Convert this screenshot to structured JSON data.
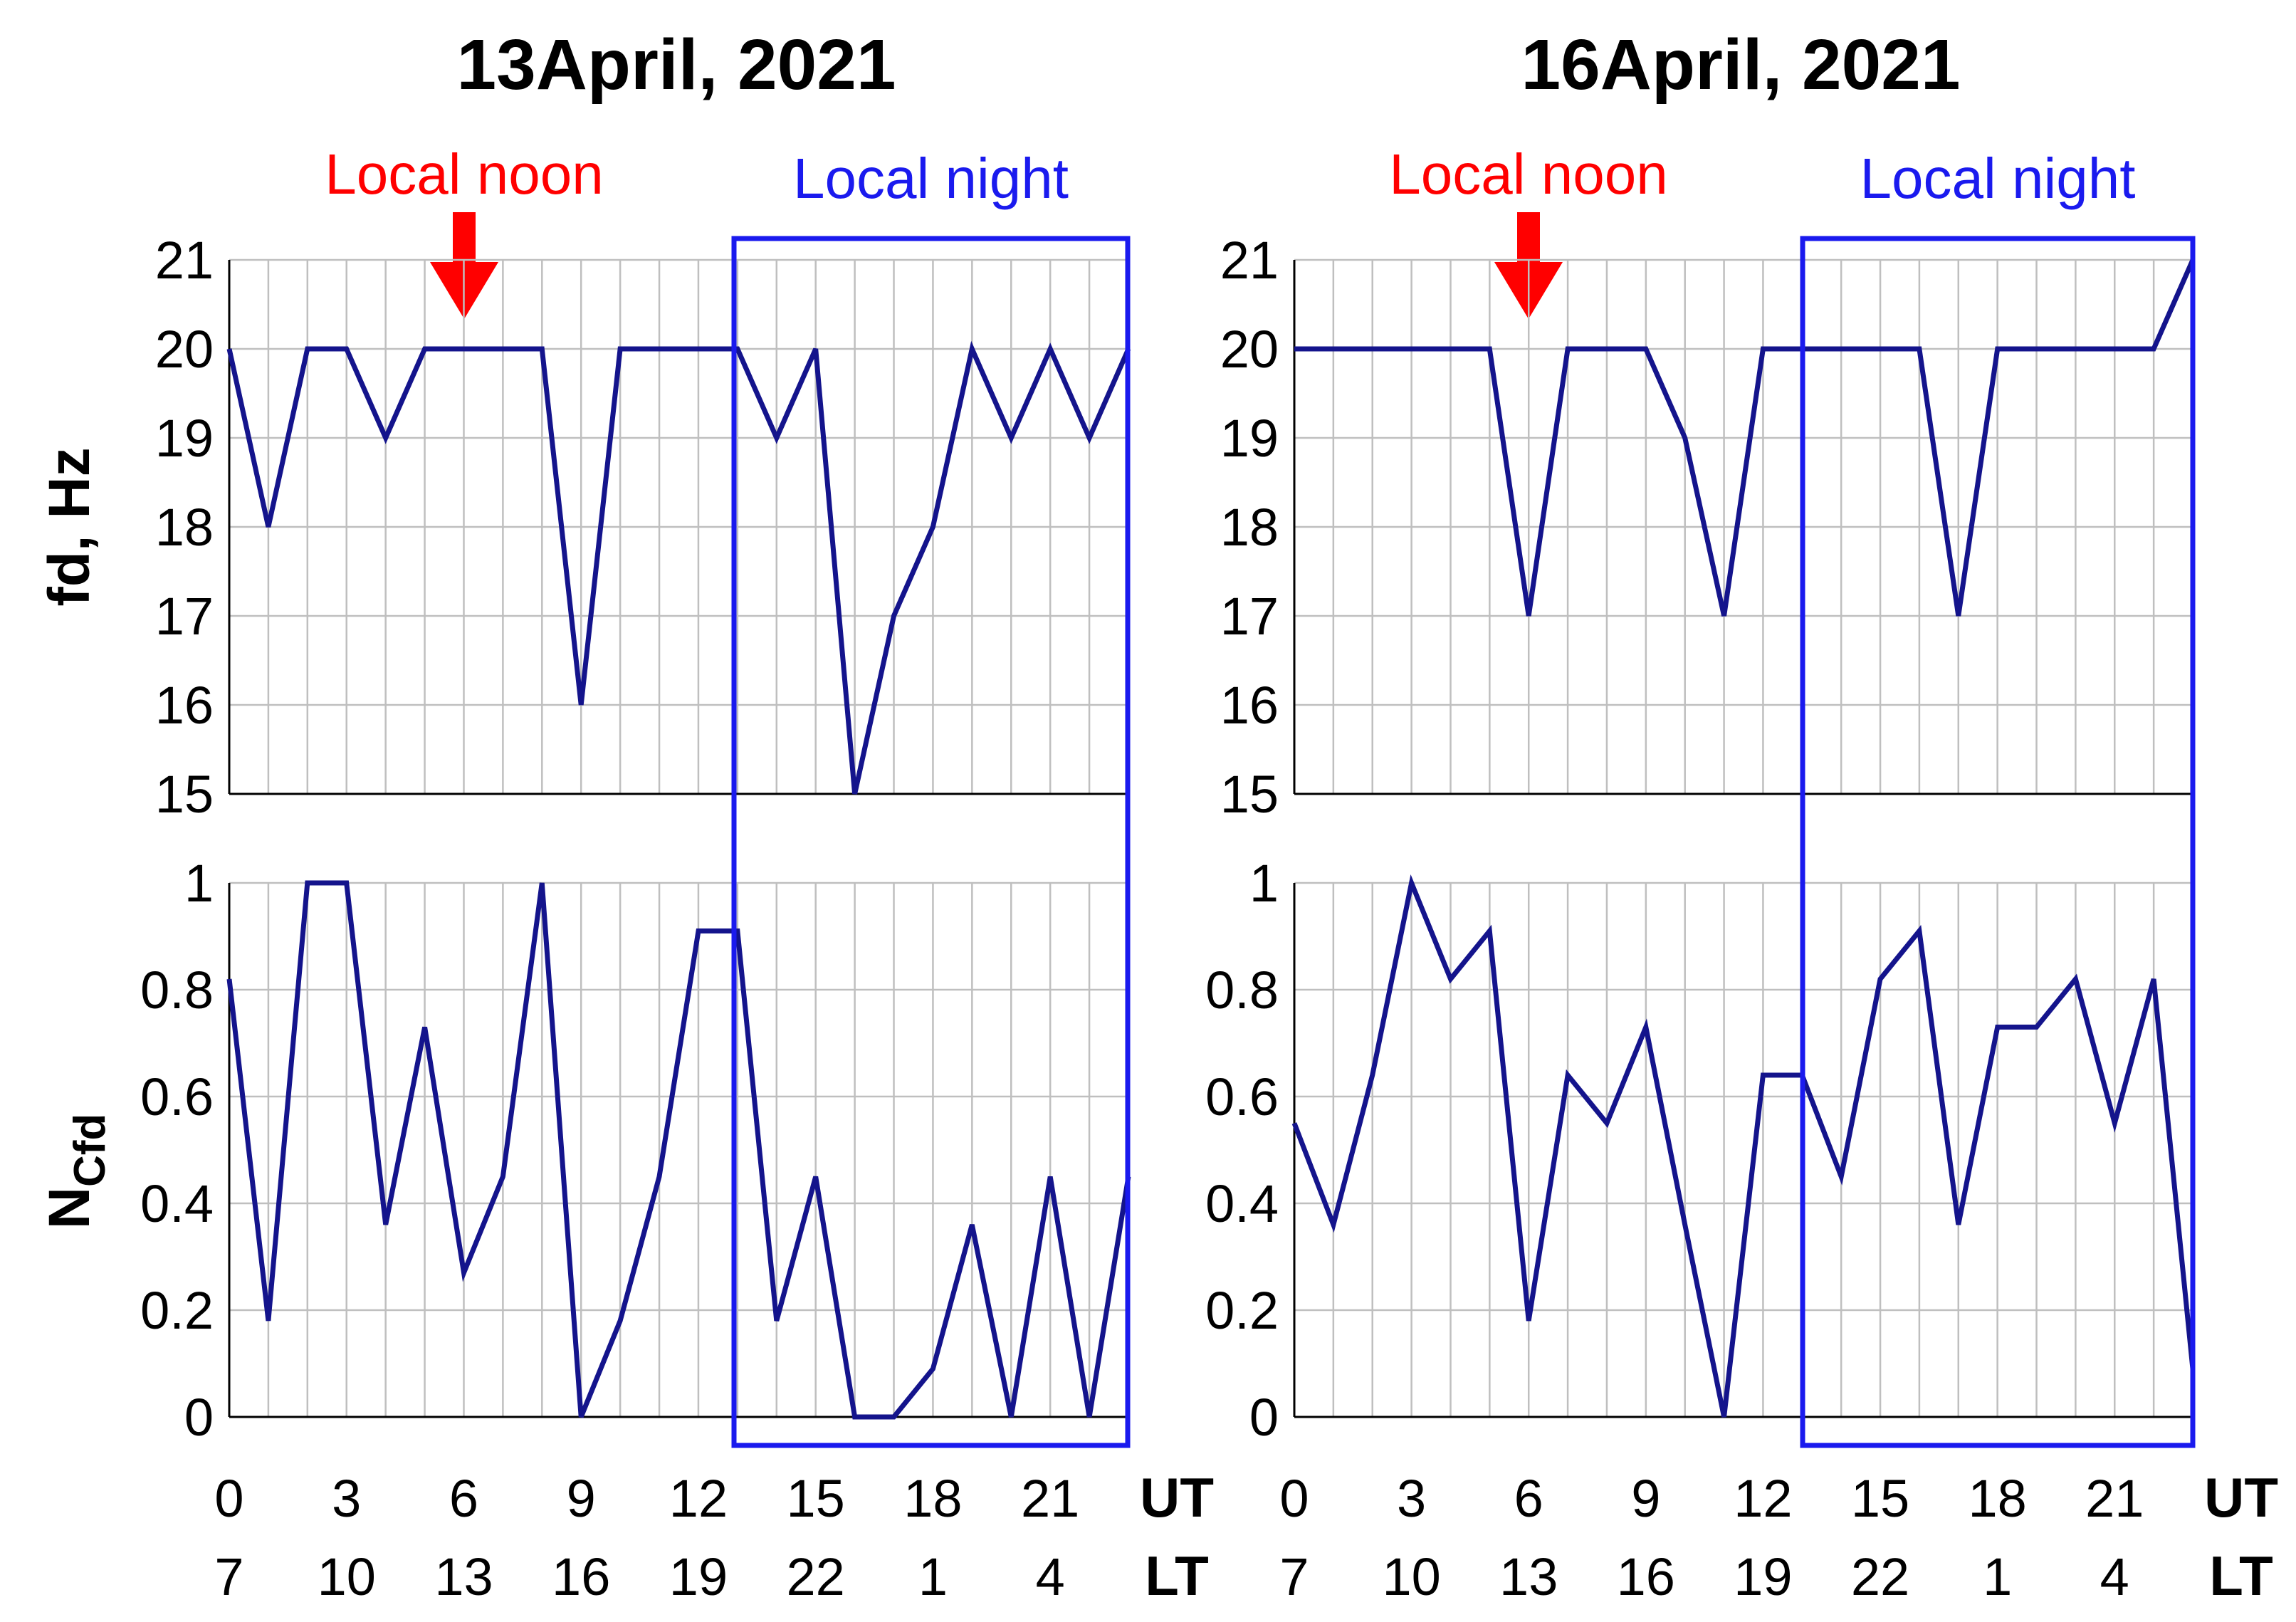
{
  "chart_data": [
    {
      "type": "line",
      "title": "13April, 2021",
      "annotations": {
        "local_noon": "Local noon",
        "local_night": "Local night"
      },
      "highlight_color": "#1a1aee",
      "arrow_color": "#ff0000",
      "local_noon_ut": 6,
      "local_night_ut": [
        13,
        23
      ],
      "x_ticks_ut": [
        "0",
        "3",
        "6",
        "9",
        "12",
        "15",
        "18",
        "21"
      ],
      "x_ticks_lt": [
        "7",
        "10",
        "13",
        "16",
        "19",
        "22",
        "1",
        "4"
      ],
      "x_unit_ut": "UT",
      "x_unit_lt": "LT",
      "xlim": [
        0,
        23
      ],
      "panels": [
        {
          "ylabel": "fd, Hz",
          "ylim": [
            15,
            21
          ],
          "y_ticks": [
            "15",
            "16",
            "17",
            "18",
            "19",
            "20",
            "21"
          ],
          "series": [
            {
              "color": "#14148c",
              "x": [
                0,
                1,
                2,
                3,
                4,
                5,
                6,
                7,
                8,
                9,
                10,
                11,
                12,
                13,
                14,
                15,
                16,
                17,
                18,
                19,
                20,
                21,
                22,
                23
              ],
              "values": [
                20,
                18,
                20,
                20,
                19,
                20,
                20,
                20,
                20,
                16,
                20,
                20,
                20,
                20,
                19,
                20,
                15,
                17,
                18,
                20,
                19,
                20,
                19,
                20
              ]
            }
          ]
        },
        {
          "ylabel": "NCfd",
          "ylim": [
            0,
            1
          ],
          "y_ticks": [
            "0",
            "0.2",
            "0.4",
            "0.6",
            "0.8",
            "1"
          ],
          "series": [
            {
              "color": "#14148c",
              "x": [
                0,
                1,
                2,
                3,
                4,
                5,
                6,
                7,
                8,
                9,
                10,
                11,
                12,
                13,
                14,
                15,
                16,
                17,
                18,
                19,
                20,
                21,
                22,
                23
              ],
              "values": [
                0.82,
                0.18,
                1,
                1,
                0.36,
                0.73,
                0.27,
                0.45,
                1,
                0,
                0.18,
                0.45,
                0.91,
                0.91,
                0.18,
                0.45,
                0,
                0,
                0.09,
                0.36,
                0,
                0.45,
                0,
                0.45
              ]
            }
          ]
        }
      ]
    },
    {
      "type": "line",
      "title": "16April, 2021",
      "annotations": {
        "local_noon": "Local noon",
        "local_night": "Local night"
      },
      "highlight_color": "#1a1aee",
      "arrow_color": "#ff0000",
      "local_noon_ut": 6,
      "local_night_ut": [
        13,
        23
      ],
      "x_ticks_ut": [
        "0",
        "3",
        "6",
        "9",
        "12",
        "15",
        "18",
        "21"
      ],
      "x_ticks_lt": [
        "7",
        "10",
        "13",
        "16",
        "19",
        "22",
        "1",
        "4"
      ],
      "x_unit_ut": "UT",
      "x_unit_lt": "LT",
      "xlim": [
        0,
        23
      ],
      "panels": [
        {
          "ylabel": "",
          "ylim": [
            15,
            21
          ],
          "y_ticks": [
            "15",
            "16",
            "17",
            "18",
            "19",
            "20",
            "21"
          ],
          "series": [
            {
              "color": "#14148c",
              "x": [
                0,
                1,
                2,
                3,
                4,
                5,
                6,
                7,
                8,
                9,
                10,
                11,
                12,
                13,
                14,
                15,
                16,
                17,
                18,
                19,
                20,
                21,
                22,
                23
              ],
              "values": [
                20,
                20,
                20,
                20,
                20,
                20,
                17,
                20,
                20,
                20,
                19,
                17,
                20,
                20,
                20,
                20,
                20,
                17,
                20,
                20,
                20,
                20,
                20,
                21
              ]
            }
          ]
        },
        {
          "ylabel": "",
          "ylim": [
            0,
            1
          ],
          "y_ticks": [
            "0",
            "0.2",
            "0.4",
            "0.6",
            "0.8",
            "1"
          ],
          "series": [
            {
              "color": "#14148c",
              "x": [
                0,
                1,
                2,
                3,
                4,
                5,
                6,
                7,
                8,
                9,
                10,
                11,
                12,
                13,
                14,
                15,
                16,
                17,
                18,
                19,
                20,
                21,
                22,
                23
              ],
              "values": [
                0.55,
                0.36,
                0.64,
                1,
                0.82,
                0.91,
                0.18,
                0.64,
                0.55,
                0.73,
                0.36,
                0,
                0.64,
                0.64,
                0.45,
                0.82,
                0.91,
                0.36,
                0.73,
                0.73,
                0.82,
                0.55,
                0.82,
                0.09
              ]
            }
          ]
        }
      ]
    }
  ]
}
